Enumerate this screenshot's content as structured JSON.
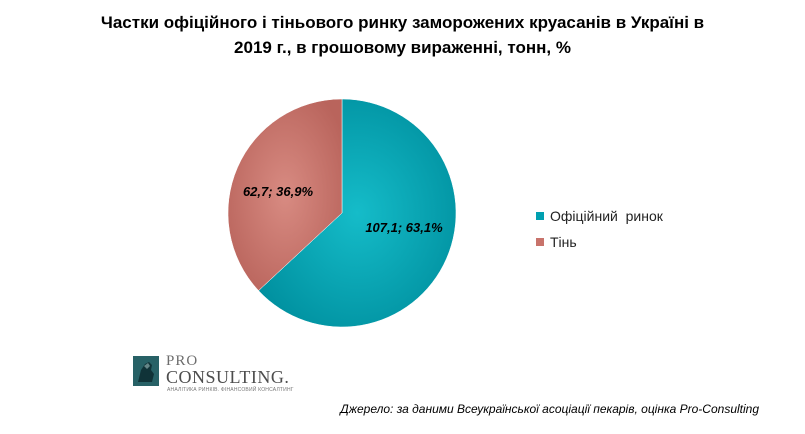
{
  "chart_data": {
    "type": "pie",
    "title_lines": [
      "Частки офіційного і тіньового ринку заморожених круасанів в Україні в",
      "2019 г., в грошовому вираженні, тонн, %"
    ],
    "slices": [
      {
        "name": "Офіційний  ринок",
        "value": 107.1,
        "percent": 63.1,
        "label": "107,1; 63,1%",
        "color": "#00a0b0"
      },
      {
        "name": "Тінь",
        "value": 62.7,
        "percent": 36.9,
        "label": "62,7; 36,9%",
        "color": "#c8736b"
      }
    ],
    "start_angle_deg": 0,
    "direction": "clockwise",
    "legend_position": "right"
  },
  "logo": {
    "line1": "PRO",
    "line2": "CONSULTING.",
    "tagline": "АНАЛІТИКА РИНКІВ. ФІНАНСОВИЙ КОНСАЛТИНГ"
  },
  "source": "Джерело: за даними Всеукраїнської асоціації пекарів, оцінка Pro-Consulting"
}
